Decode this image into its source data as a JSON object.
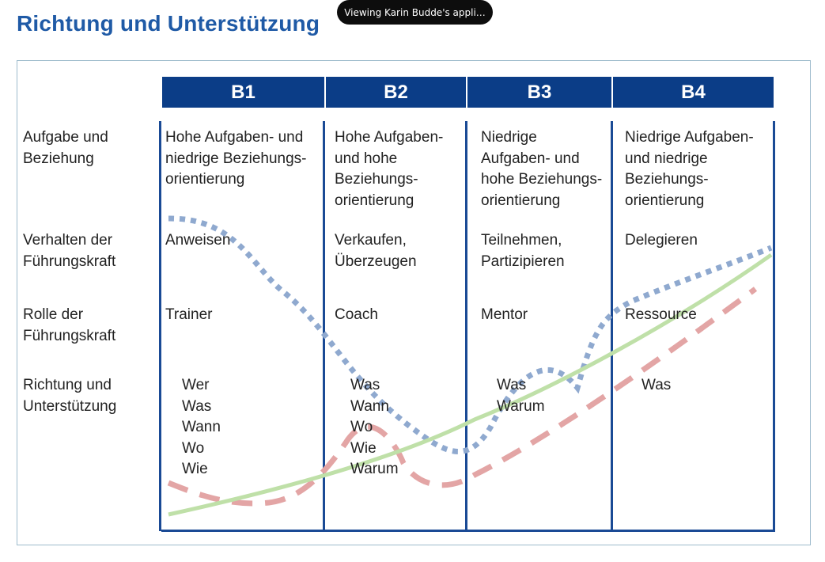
{
  "toast": {
    "text": "Viewing Karin Budde's appli…"
  },
  "slide": {
    "title": "Richtung und Unterstützung",
    "headers": [
      "B1",
      "B2",
      "B3",
      "B4"
    ],
    "row_labels": {
      "task": [
        "Aufgabe und",
        "Beziehung"
      ],
      "behavior": [
        "Verhalten der",
        "Führungskraft"
      ],
      "role": [
        "Rolle der",
        "Führungskraft"
      ],
      "direction": [
        "Richtung und",
        "Unterstützung"
      ]
    },
    "task": {
      "b1": [
        "Hohe Aufgaben- und",
        "niedrige Beziehungs-",
        "orientierung"
      ],
      "b2": [
        "Hohe Aufgaben-",
        "und hohe",
        "Beziehungs-",
        "orientierung"
      ],
      "b3": [
        "Niedrige",
        "Aufgaben- und",
        "hohe Beziehungs-",
        "orientierung"
      ],
      "b4": [
        "Niedrige Aufgaben-",
        "und niedrige",
        "Beziehungs-",
        "orientierung"
      ]
    },
    "behavior": {
      "b1": [
        "Anweisen"
      ],
      "b2": [
        "Verkaufen,",
        "Überzeugen"
      ],
      "b3": [
        "Teilnehmen,",
        "Partizipieren"
      ],
      "b4": [
        "Delegieren"
      ]
    },
    "role": {
      "b1": "Trainer",
      "b2": "Coach",
      "b3": "Mentor",
      "b4": "Ressource"
    },
    "direction": {
      "b1": [
        "Wer",
        "Was",
        "Wann",
        "Wo",
        "Wie"
      ],
      "b2": [
        "Was",
        "Wann",
        "Wo",
        "Wie",
        "Warum"
      ],
      "b3": [
        "Was",
        "Warum"
      ],
      "b4": [
        "Was"
      ]
    }
  },
  "colors": {
    "title": "#1f5aa6",
    "header_bg": "#0b3d87",
    "line": "#1a4a95",
    "dotted_curve": "#8fa9cf",
    "dashed_curve": "#e3a5a5",
    "solid_curve": "#bfe0a8"
  }
}
